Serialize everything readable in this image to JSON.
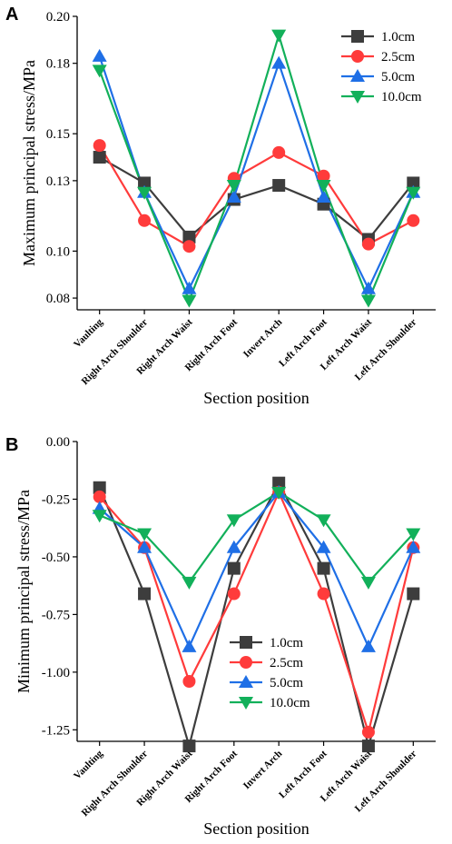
{
  "chart_data": [
    {
      "panel": "A",
      "type": "line",
      "categories": [
        "Vaulting",
        "Right Arch Shoulder",
        "Right Arch Waist",
        "Right Arch Foot",
        "Invert Arch",
        "Left Arch Foot",
        "Left Arch Waist",
        "Left Arch Shoulder"
      ],
      "xlabel": "Section position",
      "ylabel": "Maximum principal stress/MPa",
      "ylim": [
        0.075,
        0.2
      ],
      "yticks": [
        0.08,
        0.1,
        0.13,
        0.15,
        0.18,
        0.2
      ],
      "ytick_labels": [
        "0.08",
        "0.10",
        "0.13",
        "0.15",
        "0.18",
        "0.20"
      ],
      "legend_position": "top-right",
      "series": [
        {
          "name": "1.0cm",
          "color": "#3d3d3d",
          "marker": "square",
          "values": [
            0.14,
            0.129,
            0.106,
            0.122,
            0.128,
            0.12,
            0.105,
            0.129
          ]
        },
        {
          "name": "2.5cm",
          "color": "#ff3b3b",
          "marker": "circle",
          "values": [
            0.145,
            0.113,
            0.102,
            0.131,
            0.142,
            0.132,
            0.103,
            0.113
          ]
        },
        {
          "name": "5.0cm",
          "color": "#1f6fe6",
          "marker": "triangle-up",
          "values": [
            0.183,
            0.125,
            0.084,
            0.123,
            0.18,
            0.123,
            0.084,
            0.125
          ]
        },
        {
          "name": "10.0cm",
          "color": "#12b05a",
          "marker": "triangle-down",
          "values": [
            0.177,
            0.125,
            0.079,
            0.128,
            0.192,
            0.128,
            0.079,
            0.125
          ]
        }
      ]
    },
    {
      "panel": "B",
      "type": "line",
      "categories": [
        "Vaulting",
        "Right Arch Shoulder",
        "Right Arch Waist",
        "Right Arch Foot",
        "Invert Arch",
        "Left Arch Foot",
        "Left Arch Waist",
        "Left Arch Shoulder"
      ],
      "xlabel": "Section position",
      "ylabel": "Minimum principal stress/MPa",
      "ylim": [
        -1.3,
        0.0
      ],
      "yticks": [
        0.0,
        -0.25,
        -0.5,
        -0.75,
        -1.0,
        -1.25
      ],
      "ytick_labels": [
        "0.00",
        "-0.25",
        "-0.50",
        "-0.75",
        "-1.00",
        "-1.25"
      ],
      "legend_position": "bottom-center",
      "series": [
        {
          "name": "1.0cm",
          "color": "#3d3d3d",
          "marker": "square",
          "values": [
            -0.2,
            -0.66,
            -1.32,
            -0.55,
            -0.18,
            -0.55,
            -1.32,
            -0.66
          ]
        },
        {
          "name": "2.5cm",
          "color": "#ff3b3b",
          "marker": "circle",
          "values": [
            -0.24,
            -0.46,
            -1.04,
            -0.66,
            -0.22,
            -0.66,
            -1.26,
            -0.46
          ]
        },
        {
          "name": "5.0cm",
          "color": "#1f6fe6",
          "marker": "triangle-up",
          "values": [
            -0.29,
            -0.46,
            -0.89,
            -0.46,
            -0.22,
            -0.46,
            -0.89,
            -0.46
          ]
        },
        {
          "name": "10.0cm",
          "color": "#12b05a",
          "marker": "triangle-down",
          "values": [
            -0.32,
            -0.4,
            -0.61,
            -0.34,
            -0.22,
            -0.34,
            -0.61,
            -0.4
          ]
        }
      ]
    }
  ]
}
